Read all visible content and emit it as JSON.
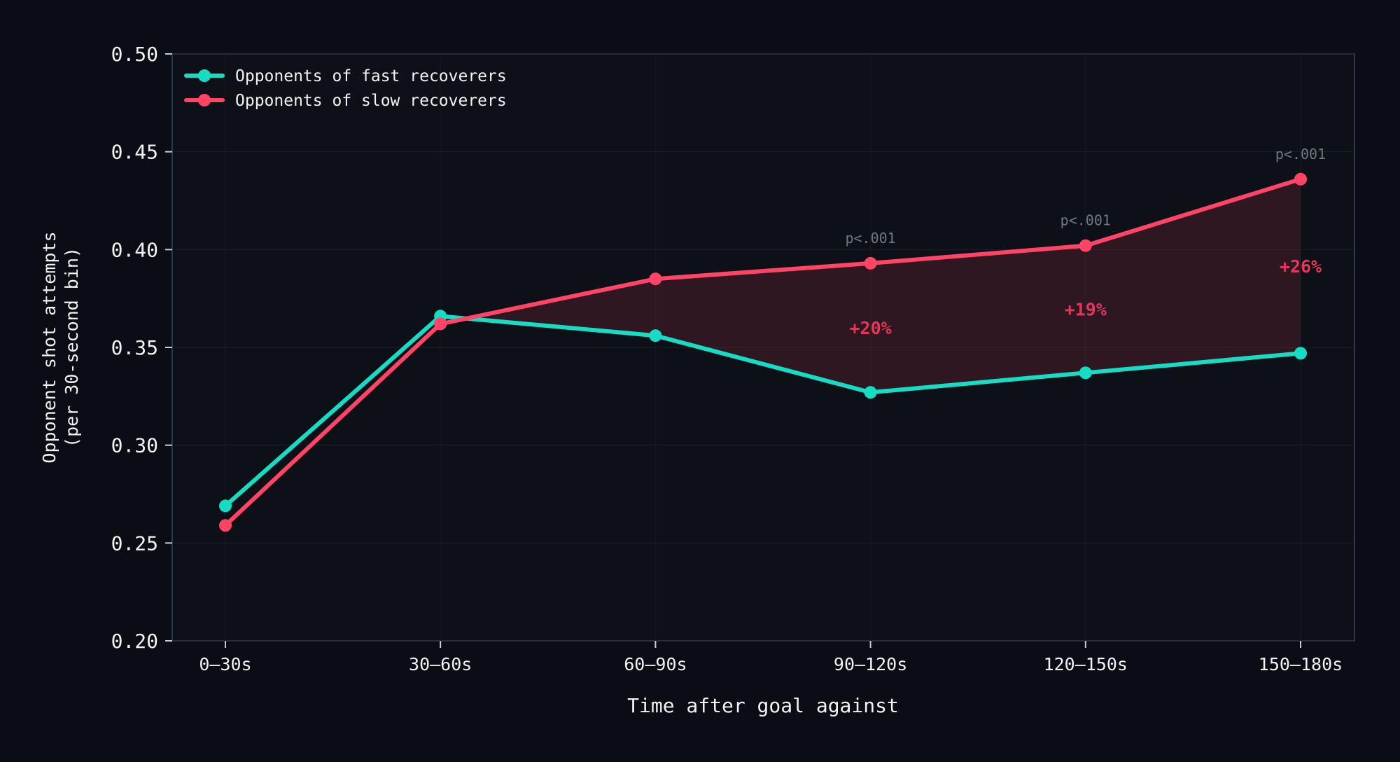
{
  "chart_data": {
    "type": "line",
    "categories": [
      "0–30s",
      "30–60s",
      "60–90s",
      "90–120s",
      "120–150s",
      "150–180s"
    ],
    "series": [
      {
        "name": "Opponents of fast recoverers",
        "color": "#17dcc4",
        "values": [
          0.269,
          0.366,
          0.356,
          0.327,
          0.337,
          0.347
        ]
      },
      {
        "name": "Opponents of slow recoverers",
        "color": "#ff4466",
        "values": [
          0.259,
          0.362,
          0.385,
          0.393,
          0.402,
          0.436
        ]
      }
    ],
    "xlabel": "Time after goal against",
    "ylabel": [
      "Opponent shot attempts",
      "(per 30-second bin)"
    ],
    "ylim": [
      0.2,
      0.5
    ],
    "yticks": [
      "0.20",
      "0.25",
      "0.30",
      "0.35",
      "0.40",
      "0.45",
      "0.50"
    ],
    "legend_position": "top-left",
    "shaded_gap_from_index": 1,
    "annotations": [
      {
        "index": 3,
        "pvalue": "p<.001",
        "diff": "+20%"
      },
      {
        "index": 4,
        "pvalue": "p<.001",
        "diff": "+19%"
      },
      {
        "index": 5,
        "pvalue": "p<.001",
        "diff": "+26%"
      }
    ]
  }
}
